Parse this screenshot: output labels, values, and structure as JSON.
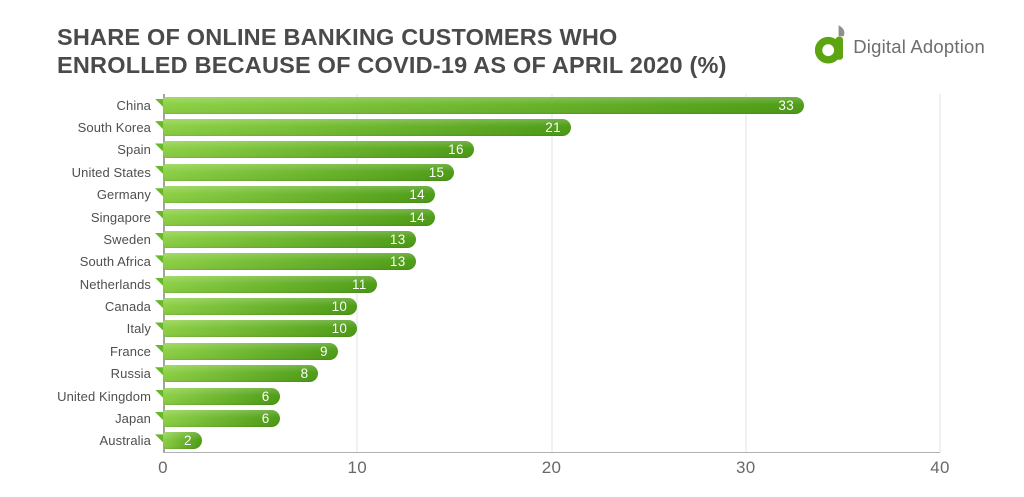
{
  "header": {
    "title_line1": "SHARE OF ONLINE BANKING CUSTOMERS WHO",
    "title_line2": "ENROLLED BECAUSE OF COVID-19 AS OF APRIL 2020 (%)",
    "logo_text": "Digital Adoption"
  },
  "chart_data": {
    "type": "bar",
    "orientation": "horizontal",
    "title": "SHARE OF ONLINE BANKING CUSTOMERS WHO ENROLLED BECAUSE OF COVID-19 AS OF APRIL 2020 (%)",
    "categories": [
      "China",
      "South Korea",
      "Spain",
      "United States",
      "Germany",
      "Singapore",
      "Sweden",
      "South Africa",
      "Netherlands",
      "Canada",
      "Italy",
      "France",
      "Russia",
      "United Kingdom",
      "Japan",
      "Australia"
    ],
    "values": [
      33,
      21,
      16,
      15,
      14,
      14,
      13,
      13,
      11,
      10,
      10,
      9,
      8,
      6,
      6,
      2
    ],
    "xlim": [
      0,
      40
    ],
    "x_ticks": [
      0,
      10,
      20,
      30,
      40
    ],
    "grid": "vertical-only",
    "value_labels": "inside-right",
    "legend": "none"
  },
  "colors": {
    "title": "#4a4a4a",
    "category_label": "#4f4f4f",
    "tick_label": "#696969",
    "gridline": "#e3e3e3",
    "axis_line": "#a3a3a3",
    "bar_gradient_left": "#8ed147",
    "bar_gradient_right": "#4f9e18",
    "bar_tail": "#66b82a",
    "value_text": "#ffffff",
    "logo_green": "#5ca411",
    "logo_leaf_gray": "#8f8f8f",
    "logo_text_gray": "#6e6e6e"
  }
}
